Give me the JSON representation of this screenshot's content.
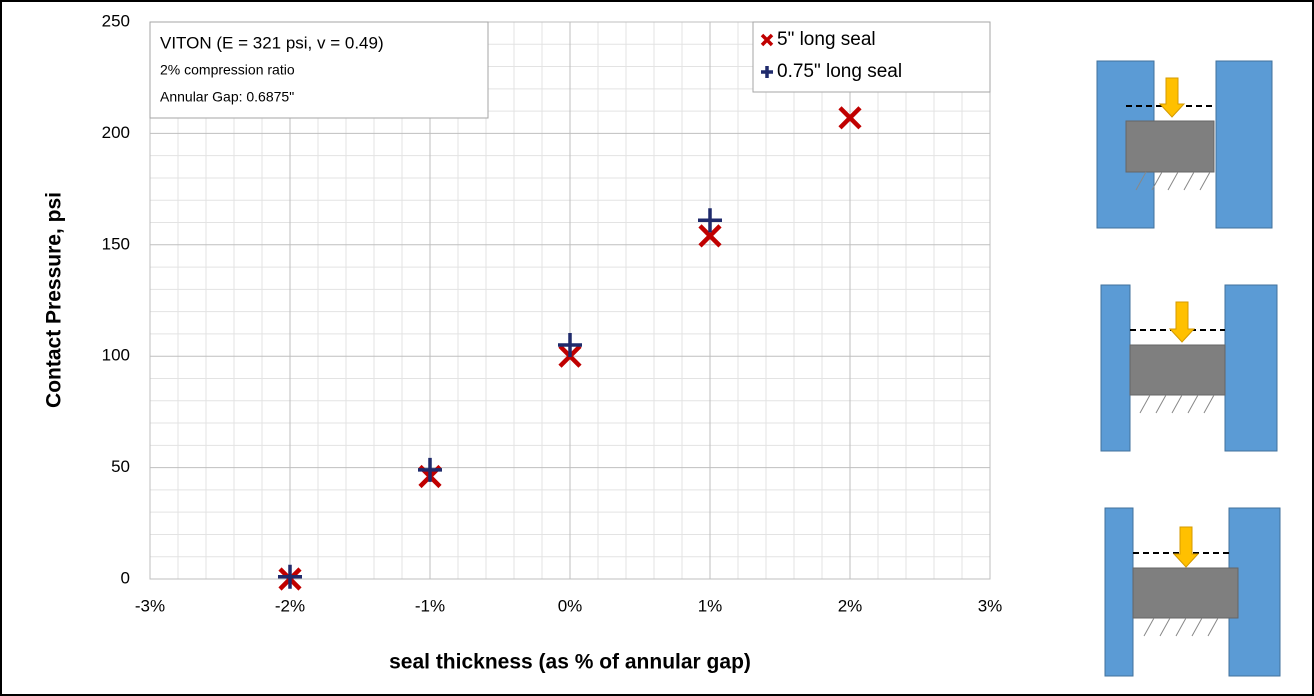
{
  "chart_data": {
    "type": "scatter",
    "xlabel": "seal thickness (as % of annular gap)",
    "ylabel": "Contact Pressure, psi",
    "annotation": [
      "VITON (E = 321 psi, v = 0.49)",
      "2% compression ratio",
      "Annular Gap: 0.6875\""
    ],
    "xlim": [
      -3,
      3
    ],
    "xticks": [
      {
        "value": -3,
        "label": "-3%"
      },
      {
        "value": -2,
        "label": "-2%"
      },
      {
        "value": -1,
        "label": "-1%"
      },
      {
        "value": 0,
        "label": "0%"
      },
      {
        "value": 1,
        "label": "1%"
      },
      {
        "value": 2,
        "label": "2%"
      },
      {
        "value": 3,
        "label": "3%"
      }
    ],
    "ylim": [
      0,
      250
    ],
    "yticks": [
      0,
      50,
      100,
      150,
      200,
      250
    ],
    "grid": true,
    "legend": "upper right",
    "series": [
      {
        "name": "5\" long seal",
        "color": "#c00000",
        "marker": "x",
        "x": [
          -2,
          -1,
          0,
          1,
          2
        ],
        "values": [
          0,
          46,
          100,
          154,
          207
        ]
      },
      {
        "name": "0.75\" long seal",
        "color": "#1f2a6b",
        "marker": "+",
        "x": [
          -2,
          -1,
          0,
          1
        ],
        "values": [
          1,
          49,
          105,
          161
        ]
      }
    ]
  }
}
